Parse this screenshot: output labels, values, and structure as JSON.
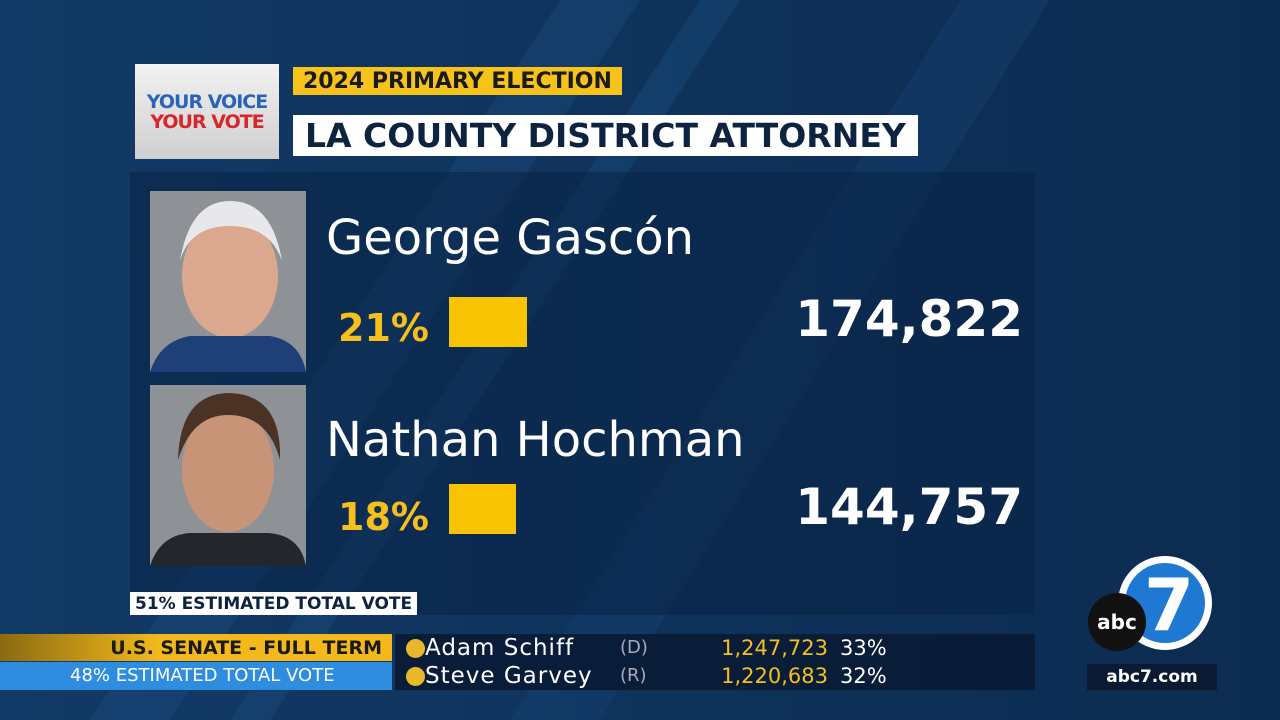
{
  "header": {
    "logo": [
      "YOUR VOICE",
      "YOUR VOTE"
    ],
    "label": "2024 PRIMARY ELECTION",
    "title": "LA COUNTY DISTRICT ATTORNEY"
  },
  "candidates": [
    {
      "name": "George Gascón",
      "percent": 21,
      "percent_label": "21%",
      "votes": "174,822"
    },
    {
      "name": "Nathan Hochman",
      "percent": 18,
      "percent_label": "18%",
      "votes": "144,757"
    }
  ],
  "estimated": "51% ESTIMATED TOTAL VOTE",
  "ticker": {
    "race": "U.S. SENATE - FULL TERM",
    "estimated": "48% ESTIMATED TOTAL VOTE",
    "rows": [
      {
        "name": "Adam Schiff",
        "party": "(D)",
        "votes": "1,247,723",
        "percent": "33%"
      },
      {
        "name": "Steve Garvey",
        "party": "(R)",
        "votes": "1,220,683",
        "percent": "32%"
      }
    ]
  },
  "brand": {
    "logo": "abc",
    "number": "7",
    "url": "abc7.com"
  }
}
